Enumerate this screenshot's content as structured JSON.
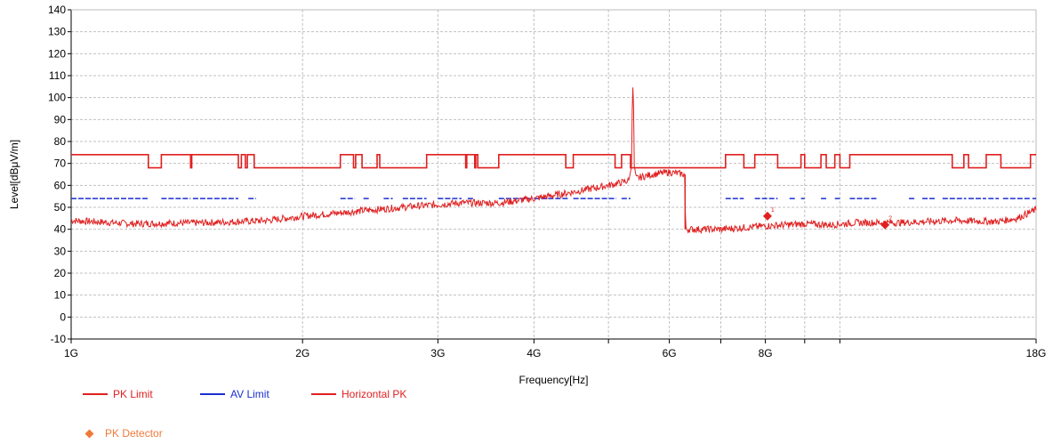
{
  "chart_data": {
    "type": "line",
    "title": "",
    "xlabel": "Frequency[Hz]",
    "ylabel": "Level[dBμV/m]",
    "x_scale": "log",
    "x_range_hz": [
      1000000000,
      18000000000
    ],
    "ylim": [
      -10,
      140
    ],
    "y_ticks": [
      -10,
      0,
      10,
      20,
      30,
      40,
      50,
      60,
      70,
      80,
      90,
      100,
      110,
      120,
      130,
      140
    ],
    "x_ticks": [
      {
        "label": "1G",
        "hz": 1000000000
      },
      {
        "label": "2G",
        "hz": 2000000000
      },
      {
        "label": "3G",
        "hz": 3000000000
      },
      {
        "label": "4G",
        "hz": 4000000000
      },
      {
        "label": "6G",
        "hz": 6000000000
      },
      {
        "label": "8G",
        "hz": 8000000000
      },
      {
        "label": "18G",
        "hz": 18000000000
      }
    ],
    "x_minor_grid_hz": [
      5000000000,
      7000000000,
      9000000000,
      10000000000
    ],
    "grid": true,
    "legend_position": "bottom-left",
    "series": [
      {
        "name": "PK Limit",
        "color": "#e02020",
        "style": "step",
        "segments": [
          {
            "from": 1.0,
            "to": 1.26,
            "y": 74
          },
          {
            "from": 1.26,
            "to": 1.31,
            "y": 68
          },
          {
            "from": 1.31,
            "to": 1.43,
            "y": 74
          },
          {
            "from": 1.43,
            "to": 1.435,
            "y": 68
          },
          {
            "from": 1.435,
            "to": 1.65,
            "y": 74
          },
          {
            "from": 1.65,
            "to": 1.665,
            "y": 68
          },
          {
            "from": 1.665,
            "to": 1.685,
            "y": 74
          },
          {
            "from": 1.685,
            "to": 1.695,
            "y": 68
          },
          {
            "from": 1.695,
            "to": 1.73,
            "y": 74
          },
          {
            "from": 1.73,
            "to": 2.24,
            "y": 68
          },
          {
            "from": 2.24,
            "to": 2.33,
            "y": 74
          },
          {
            "from": 2.33,
            "to": 2.345,
            "y": 68
          },
          {
            "from": 2.345,
            "to": 2.39,
            "y": 74
          },
          {
            "from": 2.39,
            "to": 2.5,
            "y": 68
          },
          {
            "from": 2.5,
            "to": 2.52,
            "y": 74
          },
          {
            "from": 2.52,
            "to": 2.9,
            "y": 68
          },
          {
            "from": 2.9,
            "to": 3.26,
            "y": 74
          },
          {
            "from": 3.26,
            "to": 3.27,
            "y": 68
          },
          {
            "from": 3.27,
            "to": 3.35,
            "y": 74
          },
          {
            "from": 3.35,
            "to": 3.36,
            "y": 68
          },
          {
            "from": 3.36,
            "to": 3.38,
            "y": 74
          },
          {
            "from": 3.38,
            "to": 3.6,
            "y": 68
          },
          {
            "from": 3.6,
            "to": 4.4,
            "y": 74
          },
          {
            "from": 4.4,
            "to": 4.5,
            "y": 68
          },
          {
            "from": 4.5,
            "to": 5.1,
            "y": 74
          },
          {
            "from": 5.1,
            "to": 5.2,
            "y": 68
          },
          {
            "from": 5.2,
            "to": 5.34,
            "y": 74
          },
          {
            "from": 5.34,
            "to": 7.1,
            "y": 68
          },
          {
            "from": 7.1,
            "to": 7.5,
            "y": 74
          },
          {
            "from": 7.5,
            "to": 7.75,
            "y": 68
          },
          {
            "from": 7.75,
            "to": 8.3,
            "y": 74
          },
          {
            "from": 8.3,
            "to": 8.9,
            "y": 68
          },
          {
            "from": 8.9,
            "to": 9.0,
            "y": 74
          },
          {
            "from": 9.0,
            "to": 9.45,
            "y": 68
          },
          {
            "from": 9.45,
            "to": 9.6,
            "y": 74
          },
          {
            "from": 9.6,
            "to": 9.85,
            "y": 68
          },
          {
            "from": 9.85,
            "to": 10.0,
            "y": 74
          },
          {
            "from": 10.0,
            "to": 10.3,
            "y": 68
          },
          {
            "from": 10.3,
            "to": 11.2,
            "y": 74
          },
          {
            "from": 11.2,
            "to": 14.0,
            "y": 74
          },
          {
            "from": 14.0,
            "to": 14.5,
            "y": 68
          },
          {
            "from": 14.5,
            "to": 14.7,
            "y": 74
          },
          {
            "from": 14.7,
            "to": 15.5,
            "y": 68
          },
          {
            "from": 15.5,
            "to": 16.2,
            "y": 74
          },
          {
            "from": 16.2,
            "to": 17.7,
            "y": 68
          },
          {
            "from": 17.7,
            "to": 18.0,
            "y": 74
          }
        ]
      },
      {
        "name": "AV Limit",
        "color": "#1a2fd0",
        "style": "dashed-segments",
        "y": 54,
        "segments_ghz": [
          [
            1.0,
            1.26
          ],
          [
            1.31,
            1.43
          ],
          [
            1.44,
            1.65
          ],
          [
            1.7,
            1.74
          ],
          [
            2.24,
            2.34
          ],
          [
            2.4,
            2.45
          ],
          [
            2.55,
            2.62
          ],
          [
            2.7,
            2.9
          ],
          [
            3.0,
            3.22
          ],
          [
            3.28,
            3.35
          ],
          [
            3.6,
            3.95
          ],
          [
            4.0,
            4.45
          ],
          [
            4.5,
            5.12
          ],
          [
            5.2,
            5.34
          ],
          [
            7.1,
            7.5
          ],
          [
            7.75,
            8.3
          ],
          [
            8.6,
            8.75
          ],
          [
            8.9,
            9.0
          ],
          [
            9.45,
            9.6
          ],
          [
            9.85,
            10.0
          ],
          [
            10.3,
            11.2
          ],
          [
            12.3,
            12.5
          ],
          [
            12.8,
            13.3
          ],
          [
            13.6,
            14.6
          ],
          [
            14.7,
            15.5
          ],
          [
            15.6,
            16.1
          ],
          [
            16.3,
            17.7
          ],
          [
            17.8,
            18.0
          ]
        ]
      },
      {
        "name": "Horizontal PK",
        "color": "#e02020",
        "style": "noisy-line",
        "trend": [
          {
            "x": 1.0,
            "y": 44
          },
          {
            "x": 1.2,
            "y": 42.5
          },
          {
            "x": 1.5,
            "y": 43
          },
          {
            "x": 1.8,
            "y": 44
          },
          {
            "x": 2.0,
            "y": 46
          },
          {
            "x": 2.4,
            "y": 48.5
          },
          {
            "x": 2.8,
            "y": 50.5
          },
          {
            "x": 3.2,
            "y": 52
          },
          {
            "x": 3.6,
            "y": 52
          },
          {
            "x": 4.0,
            "y": 54
          },
          {
            "x": 4.5,
            "y": 57
          },
          {
            "x": 5.0,
            "y": 60
          },
          {
            "x": 5.3,
            "y": 62
          },
          {
            "x": 5.4,
            "y": 63
          },
          {
            "x": 5.7,
            "y": 65
          },
          {
            "x": 6.0,
            "y": 66
          },
          {
            "x": 6.28,
            "y": 65
          },
          {
            "x": 6.3,
            "y": 40
          },
          {
            "x": 7.0,
            "y": 40
          },
          {
            "x": 8.0,
            "y": 41.5
          },
          {
            "x": 9.0,
            "y": 42.5
          },
          {
            "x": 9.7,
            "y": 42
          },
          {
            "x": 10.5,
            "y": 43
          },
          {
            "x": 12.0,
            "y": 43
          },
          {
            "x": 14.0,
            "y": 44
          },
          {
            "x": 16.0,
            "y": 43.5
          },
          {
            "x": 17.0,
            "y": 45
          },
          {
            "x": 18.0,
            "y": 49
          }
        ],
        "peak": {
          "x": 5.38,
          "y": 105
        }
      }
    ],
    "markers": {
      "name": "PK Detector",
      "color": "#f07a3a",
      "points": [
        {
          "x": 8.05,
          "y": 46,
          "label": "1"
        },
        {
          "x": 11.45,
          "y": 42,
          "label": "2"
        }
      ]
    }
  }
}
